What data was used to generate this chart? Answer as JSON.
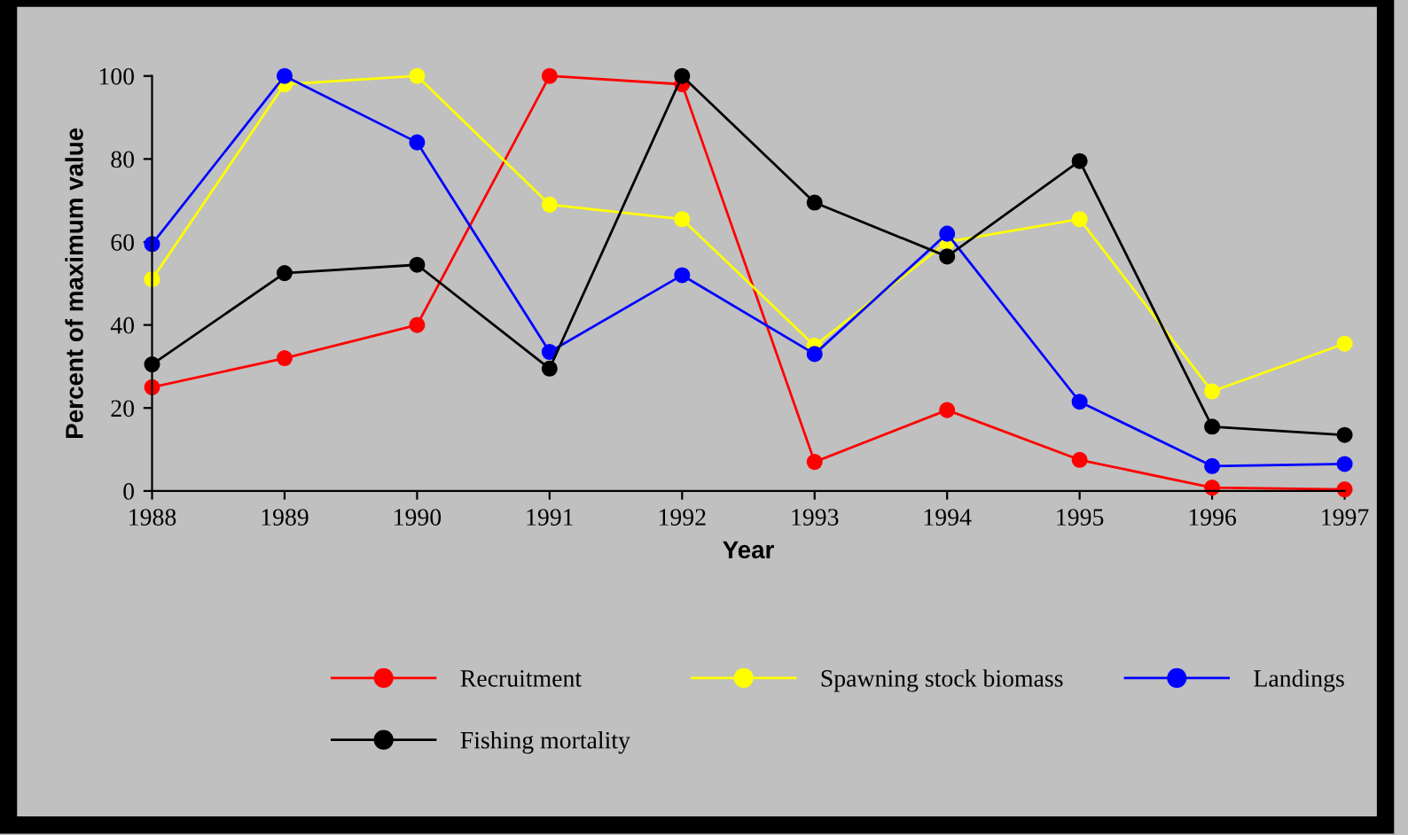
{
  "chart_data": {
    "type": "line",
    "xlabel": "Year",
    "ylabel": "Percent of maximum value",
    "x": [
      1988,
      1989,
      1990,
      1991,
      1992,
      1993,
      1994,
      1995,
      1996,
      1997
    ],
    "series": [
      {
        "name": "Recruitment",
        "color": "#ff0000",
        "values": [
          25,
          32,
          40,
          100,
          98,
          7,
          19.5,
          7.5,
          0.8,
          0.4
        ]
      },
      {
        "name": "Spawning stock biomass",
        "color": "#ffff00",
        "values": [
          51,
          98,
          100,
          69,
          65.5,
          35,
          60,
          65.5,
          24,
          35.5
        ]
      },
      {
        "name": "Landings",
        "color": "#0000ff",
        "values": [
          59.5,
          100,
          84,
          33.5,
          52,
          33,
          62,
          21.5,
          6,
          6.5
        ]
      },
      {
        "name": "Fishing mortality",
        "color": "#000000",
        "values": [
          30.5,
          52.5,
          54.5,
          29.5,
          100,
          69.5,
          56.5,
          79.5,
          15.5,
          13.5
        ]
      }
    ],
    "xlim": [
      1988,
      1997
    ],
    "xticks": [
      1988,
      1989,
      1990,
      1991,
      1992,
      1993,
      1994,
      1995,
      1996,
      1997
    ],
    "ylim": [
      0,
      100
    ],
    "yticks": [
      0,
      20,
      40,
      60,
      80,
      100
    ],
    "grid": false,
    "legend": "bottom",
    "marker": "circle",
    "line_style": "solid"
  }
}
